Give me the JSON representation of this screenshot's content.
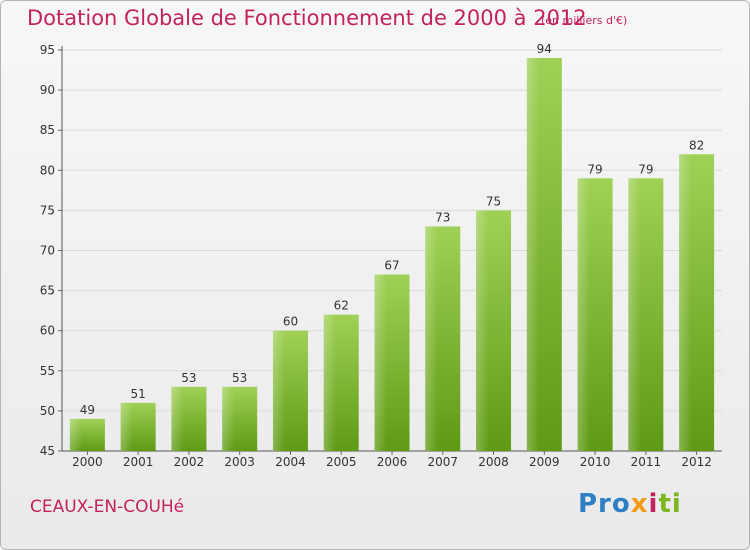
{
  "title": "Dotation Globale de Fonctionnement de 2000 à 2012",
  "subtitle": "(en milliers d'€)",
  "commune": "CEAUX-EN-COUHé",
  "brand": {
    "p1": "Pro",
    "p2": "x",
    "p3": "i",
    "p4": "ti"
  },
  "colors": {
    "bar_top": "#9fd156",
    "bar_bottom": "#5e9a14",
    "title": "#c4215f",
    "grid": "#d9d9d9"
  },
  "chart_data": {
    "type": "bar",
    "categories": [
      "2000",
      "2001",
      "2002",
      "2003",
      "2004",
      "2005",
      "2006",
      "2007",
      "2008",
      "2009",
      "2010",
      "2011",
      "2012"
    ],
    "values": [
      49,
      51,
      53,
      53,
      60,
      62,
      67,
      73,
      75,
      94,
      79,
      79,
      82
    ],
    "ylim": [
      45,
      95
    ],
    "yticks": [
      45,
      50,
      55,
      60,
      65,
      70,
      75,
      80,
      85,
      90,
      95
    ],
    "grid": true
  }
}
